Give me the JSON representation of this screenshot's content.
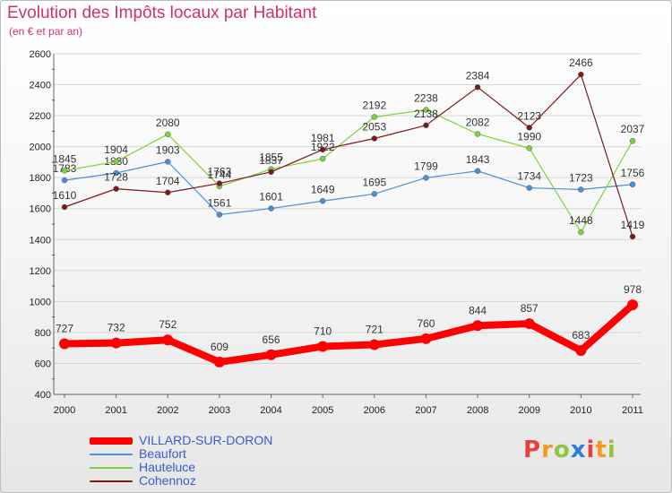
{
  "header": {
    "title": "Evolution des Impôts locaux par Habitant",
    "subtitle": "(en € et par an)"
  },
  "logo": {
    "text": "Proxiti",
    "letters": [
      {
        "ch": "P",
        "color": "#e8413b"
      },
      {
        "ch": "r",
        "color": "#f29a1f"
      },
      {
        "ch": "o",
        "color": "#8ec63f"
      },
      {
        "ch": "x",
        "color": "#2f7fd9"
      },
      {
        "ch": "i",
        "color": "#e8413b"
      },
      {
        "ch": "t",
        "color": "#f29a1f"
      },
      {
        "ch": "i",
        "color": "#8ec63f"
      }
    ]
  },
  "chart_data": {
    "type": "line",
    "title": "Evolution des Impôts locaux par Habitant",
    "subtitle": "(en € et par an)",
    "xlabel": "",
    "ylabel": "",
    "categories": [
      "2000",
      "2001",
      "2002",
      "2003",
      "2004",
      "2005",
      "2006",
      "2007",
      "2008",
      "2009",
      "2010",
      "2011"
    ],
    "yticks": [
      400,
      600,
      800,
      1000,
      1200,
      1400,
      1600,
      1800,
      2000,
      2200,
      2400,
      2600
    ],
    "ylim": [
      400,
      2600
    ],
    "grid": "horizontal",
    "legend": "bottom-left",
    "series": [
      {
        "name": "VILLARD-SUR-DORON",
        "color": "#ff0000",
        "width": 8,
        "values": [
          727,
          732,
          752,
          609,
          656,
          710,
          721,
          760,
          844,
          857,
          683,
          978
        ],
        "labels": [
          "727",
          "732",
          "752",
          "609",
          "656",
          "710",
          "721",
          "760",
          "844",
          "857",
          "683",
          "978"
        ]
      },
      {
        "name": "Beaufort",
        "color": "#4a90d9",
        "width": 1.2,
        "values": [
          1783,
          1830,
          1903,
          1561,
          1601,
          1649,
          1695,
          1799,
          1843,
          1734,
          1723,
          1756
        ],
        "labels": [
          "1783",
          "1830",
          "1903",
          "1561",
          "1601",
          "1649",
          "1695",
          "1799",
          "1843",
          "1734",
          "1723",
          "1756"
        ]
      },
      {
        "name": "Hauteluce",
        "color": "#7fd23c",
        "width": 1.2,
        "values": [
          1845,
          1904,
          2080,
          1744,
          1855,
          1922,
          2192,
          2238,
          2082,
          1990,
          1448,
          2037
        ],
        "labels": [
          "1845",
          "1904",
          "2080",
          "1744",
          "1855",
          "1922",
          "2192",
          "2238",
          "2082",
          "1990",
          "1448",
          "2037"
        ]
      },
      {
        "name": "Cohennoz",
        "color": "#7a1a1a",
        "width": 1.2,
        "values": [
          1610,
          1728,
          1704,
          1763,
          1837,
          1981,
          2053,
          2138,
          2384,
          2123,
          2466,
          1419
        ],
        "labels": [
          "1610",
          "1728",
          "1704",
          "1763",
          "1837",
          "1981",
          "2053",
          "2138",
          "2384",
          "2123",
          "2466",
          "1419"
        ]
      }
    ]
  }
}
